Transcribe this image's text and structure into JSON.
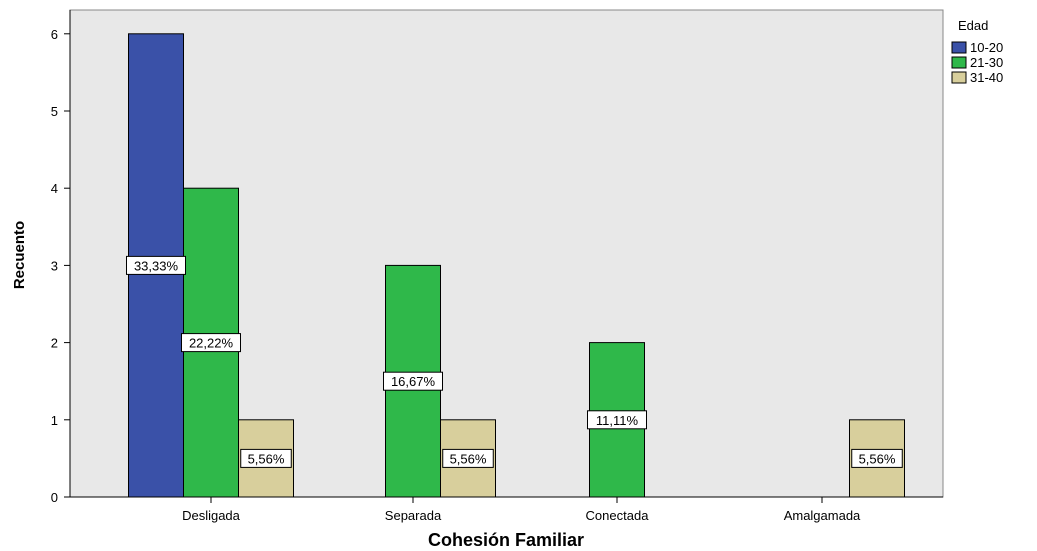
{
  "chart_data": {
    "type": "bar",
    "categories": [
      "Desligada",
      "Separada",
      "Conectada",
      "Amalgamada"
    ],
    "series": [
      {
        "name": "10-20",
        "color": "#3a51a8",
        "values": [
          6,
          0,
          0,
          0
        ],
        "labels": [
          "33,33%",
          "",
          "",
          ""
        ]
      },
      {
        "name": "21-30",
        "color": "#2fb84a",
        "values": [
          4,
          3,
          2,
          0
        ],
        "labels": [
          "22,22%",
          "16,67%",
          "11,11%",
          ""
        ]
      },
      {
        "name": "31-40",
        "color": "#d8cf9c",
        "values": [
          1,
          1,
          0,
          1
        ],
        "labels": [
          "5,56%",
          "5,56%",
          "",
          "5,56%"
        ]
      }
    ],
    "xlabel": "Cohesión Familiar",
    "ylabel": "Recuento",
    "ylim": [
      0,
      6.3
    ],
    "yticks": [
      "0",
      "1",
      "2",
      "3",
      "4",
      "5",
      "6"
    ],
    "legend": {
      "title": "Edad",
      "position": "top-right"
    },
    "grid": false,
    "plot_background": "#e8e8e8"
  }
}
